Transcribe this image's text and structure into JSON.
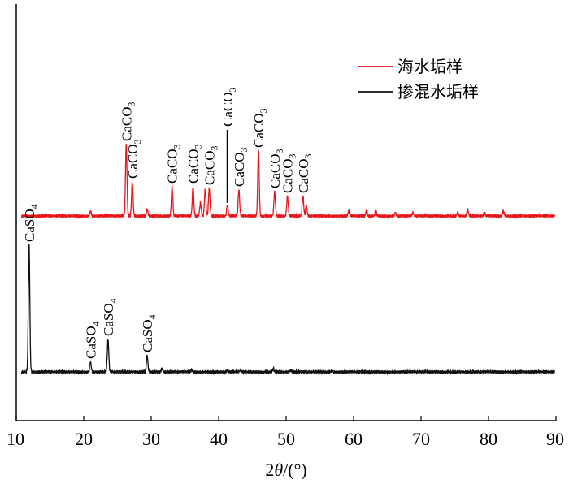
{
  "chart_data": {
    "type": "line",
    "title": "",
    "xlabel_prefix": "2",
    "xlabel_var": "θ",
    "xlabel_suffix": "/(°)",
    "ylabel": "",
    "xlim": [
      10,
      90
    ],
    "x_ticks": [
      10,
      20,
      30,
      40,
      50,
      60,
      70,
      80,
      90
    ],
    "y_ticks": [],
    "legend_position": "top-right",
    "series": [
      {
        "name": "海水垢样",
        "color": "#e8151b",
        "baseline": 1.0,
        "peaks": [
          {
            "x": 21.0,
            "h": 0.03
          },
          {
            "x": 26.3,
            "h": 0.44
          },
          {
            "x": 27.2,
            "h": 0.21
          },
          {
            "x": 29.4,
            "h": 0.04
          },
          {
            "x": 33.1,
            "h": 0.18
          },
          {
            "x": 36.2,
            "h": 0.18
          },
          {
            "x": 37.3,
            "h": 0.08
          },
          {
            "x": 38.0,
            "h": 0.16
          },
          {
            "x": 38.6,
            "h": 0.17
          },
          {
            "x": 41.3,
            "h": 0.07
          },
          {
            "x": 43.0,
            "h": 0.16
          },
          {
            "x": 45.9,
            "h": 0.4
          },
          {
            "x": 48.3,
            "h": 0.15
          },
          {
            "x": 50.2,
            "h": 0.12
          },
          {
            "x": 52.5,
            "h": 0.12
          },
          {
            "x": 53.0,
            "h": 0.06
          },
          {
            "x": 59.3,
            "h": 0.03
          },
          {
            "x": 61.9,
            "h": 0.03
          },
          {
            "x": 63.3,
            "h": 0.03
          },
          {
            "x": 66.2,
            "h": 0.02
          },
          {
            "x": 68.8,
            "h": 0.02
          },
          {
            "x": 75.4,
            "h": 0.02
          },
          {
            "x": 76.9,
            "h": 0.04
          },
          {
            "x": 79.4,
            "h": 0.02
          },
          {
            "x": 82.2,
            "h": 0.03
          }
        ]
      },
      {
        "name": "掺混水垢样",
        "color": "#111111",
        "baseline": 0.0,
        "peaks": [
          {
            "x": 11.9,
            "h": 0.78
          },
          {
            "x": 21.0,
            "h": 0.06
          },
          {
            "x": 23.6,
            "h": 0.2
          },
          {
            "x": 29.4,
            "h": 0.1
          },
          {
            "x": 31.6,
            "h": 0.02
          },
          {
            "x": 36.0,
            "h": 0.01
          },
          {
            "x": 41.3,
            "h": 0.01
          },
          {
            "x": 43.2,
            "h": 0.01
          },
          {
            "x": 48.1,
            "h": 0.02
          },
          {
            "x": 50.7,
            "h": 0.01
          },
          {
            "x": 56.8,
            "h": 0.01
          }
        ]
      }
    ],
    "annotations": [
      {
        "series": 0,
        "x": 26.3,
        "base": "CaCO",
        "sub": "3"
      },
      {
        "series": 0,
        "x": 27.2,
        "base": "CaCO",
        "sub": "3"
      },
      {
        "series": 0,
        "x": 33.1,
        "base": "CaCO",
        "sub": "3"
      },
      {
        "series": 0,
        "x": 36.2,
        "base": "CaCO",
        "sub": "3"
      },
      {
        "series": 0,
        "x": 38.6,
        "base": "CaCO",
        "sub": "3"
      },
      {
        "series": 0,
        "x": 41.3,
        "base": "CaCO",
        "sub": "3",
        "leader": true
      },
      {
        "series": 0,
        "x": 43.0,
        "base": "CaCO",
        "sub": "3"
      },
      {
        "series": 0,
        "x": 45.9,
        "base": "CaCO",
        "sub": "3"
      },
      {
        "series": 0,
        "x": 48.3,
        "base": "CaCO",
        "sub": "3"
      },
      {
        "series": 0,
        "x": 50.2,
        "base": "CaCO",
        "sub": "3"
      },
      {
        "series": 0,
        "x": 52.5,
        "base": "CaCO",
        "sub": "3"
      },
      {
        "series": 1,
        "x": 11.9,
        "base": "CaSO",
        "sub": "4"
      },
      {
        "series": 1,
        "x": 21.0,
        "base": "CaSO",
        "sub": "4"
      },
      {
        "series": 1,
        "x": 23.6,
        "base": "CaSO",
        "sub": "4"
      },
      {
        "series": 1,
        "x": 29.4,
        "base": "CaSO",
        "sub": "4"
      }
    ]
  }
}
